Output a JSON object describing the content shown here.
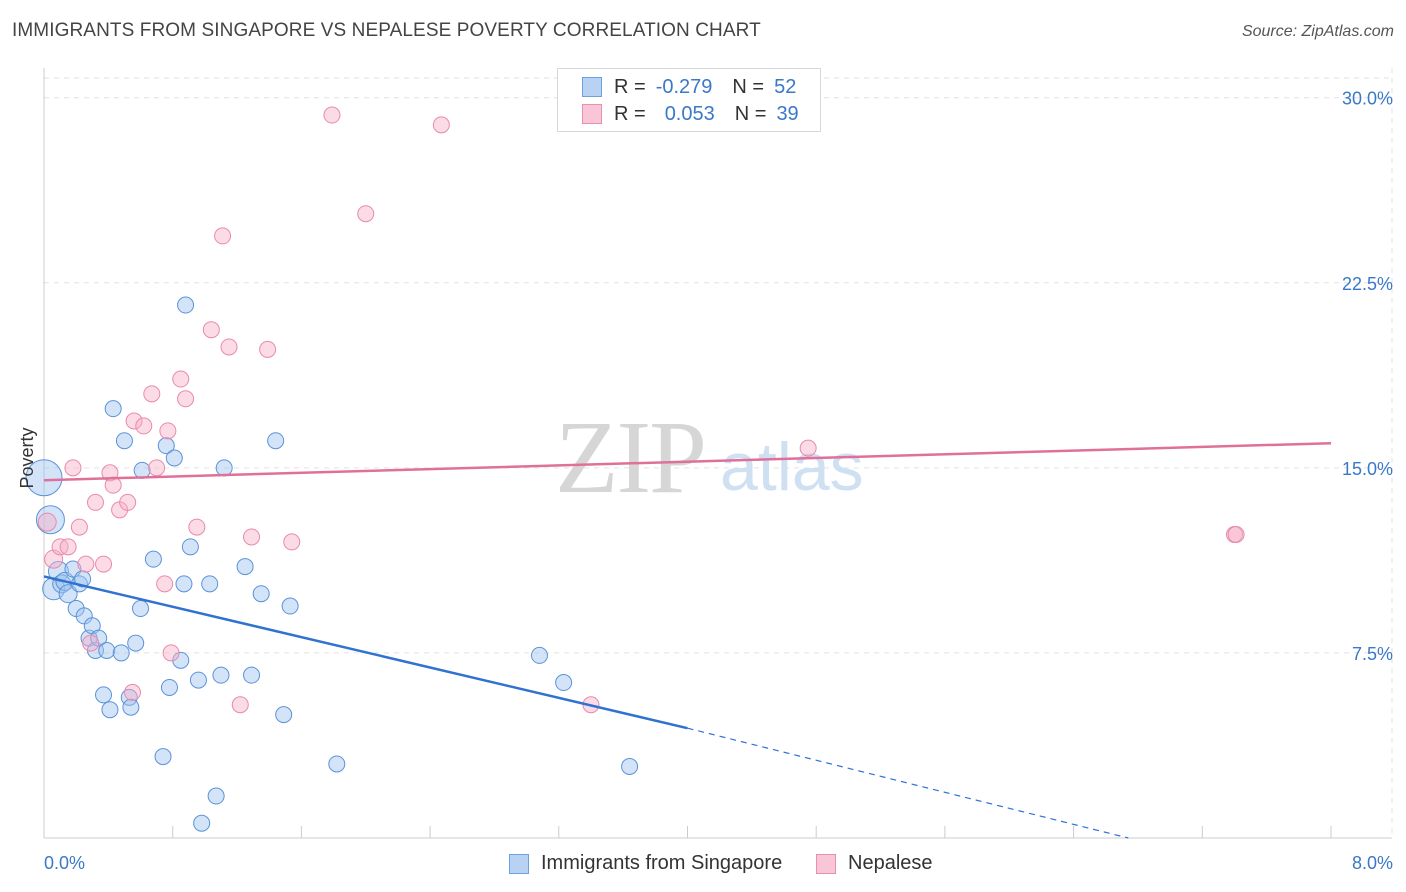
{
  "header": {
    "title": "IMMIGRANTS FROM SINGAPORE VS NEPALESE POVERTY CORRELATION CHART",
    "source": "Source: ZipAtlas.com"
  },
  "watermark": {
    "zip": "ZIP",
    "atlas": "atlas"
  },
  "legend": {
    "rows": [
      {
        "r_label": "R =",
        "r_value": "-0.279",
        "n_label": "N =",
        "n_value": "52",
        "fill": "#b8d2f4",
        "stroke": "#6f9fdc"
      },
      {
        "r_label": "R =",
        "r_value": "0.053",
        "n_label": "N =",
        "n_value": "39",
        "fill": "#f8c6d6",
        "stroke": "#e890ad"
      }
    ]
  },
  "bottom_legend": [
    {
      "label": "Immigrants from Singapore",
      "fill": "#b8d2f4",
      "stroke": "#6f9fdc"
    },
    {
      "label": "Nepalese",
      "fill": "#f8c6d6",
      "stroke": "#e890ad"
    }
  ],
  "colors": {
    "blue_fill": "rgba(160,196,240,0.45)",
    "blue_stroke": "#5b93d8",
    "blue_line": "#2f72d0",
    "pink_fill": "rgba(246,176,200,0.45)",
    "pink_stroke": "#e98aab",
    "pink_line": "#e0709a",
    "axis_text": "#3a78c8",
    "grid": "#e2e2e2"
  },
  "chart_data": {
    "type": "scatter",
    "title": "IMMIGRANTS FROM SINGAPORE VS NEPALESE POVERTY CORRELATION CHART",
    "xlabel": "",
    "ylabel": "Poverty",
    "xlim": [
      0,
      8
    ],
    "ylim": [
      0,
      30.8
    ],
    "x_tick_labels": [
      "0.0%",
      "8.0%"
    ],
    "y_ticks": [
      {
        "value": 7.5,
        "label": "7.5%"
      },
      {
        "value": 15.0,
        "label": "15.0%"
      },
      {
        "value": 22.5,
        "label": "22.5%"
      },
      {
        "value": 30.0,
        "label": "30.0%"
      }
    ],
    "series": [
      {
        "name": "Immigrants from Singapore",
        "color": "blue",
        "points": [
          {
            "x": 0.0,
            "y": 14.6,
            "r": 18
          },
          {
            "x": 0.04,
            "y": 12.9,
            "r": 14
          },
          {
            "x": 0.06,
            "y": 10.1,
            "r": 11
          },
          {
            "x": 0.09,
            "y": 10.8,
            "r": 10
          },
          {
            "x": 0.11,
            "y": 10.3,
            "r": 9
          },
          {
            "x": 0.13,
            "y": 10.4,
            "r": 9
          },
          {
            "x": 0.15,
            "y": 9.9,
            "r": 9
          },
          {
            "x": 0.18,
            "y": 10.9,
            "r": 8
          },
          {
            "x": 0.2,
            "y": 9.3,
            "r": 8
          },
          {
            "x": 0.22,
            "y": 10.3,
            "r": 8
          },
          {
            "x": 0.25,
            "y": 9.0,
            "r": 8
          },
          {
            "x": 0.28,
            "y": 8.1,
            "r": 8
          },
          {
            "x": 0.3,
            "y": 8.6,
            "r": 8
          },
          {
            "x": 0.32,
            "y": 7.6,
            "r": 8
          },
          {
            "x": 0.34,
            "y": 8.1,
            "r": 8
          },
          {
            "x": 0.37,
            "y": 5.8,
            "r": 8
          },
          {
            "x": 0.39,
            "y": 7.6,
            "r": 8
          },
          {
            "x": 0.41,
            "y": 5.2,
            "r": 8
          },
          {
            "x": 0.43,
            "y": 17.4,
            "r": 8
          },
          {
            "x": 0.48,
            "y": 7.5,
            "r": 8
          },
          {
            "x": 0.5,
            "y": 16.1,
            "r": 8
          },
          {
            "x": 0.53,
            "y": 5.7,
            "r": 8
          },
          {
            "x": 0.54,
            "y": 5.3,
            "r": 8
          },
          {
            "x": 0.57,
            "y": 7.9,
            "r": 8
          },
          {
            "x": 0.6,
            "y": 9.3,
            "r": 8
          },
          {
            "x": 0.61,
            "y": 14.9,
            "r": 8
          },
          {
            "x": 0.68,
            "y": 11.3,
            "r": 8
          },
          {
            "x": 0.74,
            "y": 3.3,
            "r": 8
          },
          {
            "x": 0.76,
            "y": 15.9,
            "r": 8
          },
          {
            "x": 0.78,
            "y": 6.1,
            "r": 8
          },
          {
            "x": 0.81,
            "y": 15.4,
            "r": 8
          },
          {
            "x": 0.85,
            "y": 7.2,
            "r": 8
          },
          {
            "x": 0.87,
            "y": 10.3,
            "r": 8
          },
          {
            "x": 0.88,
            "y": 21.6,
            "r": 8
          },
          {
            "x": 0.91,
            "y": 11.8,
            "r": 8
          },
          {
            "x": 0.96,
            "y": 6.4,
            "r": 8
          },
          {
            "x": 0.98,
            "y": 0.6,
            "r": 8
          },
          {
            "x": 1.03,
            "y": 10.3,
            "r": 8
          },
          {
            "x": 1.07,
            "y": 1.7,
            "r": 8
          },
          {
            "x": 1.1,
            "y": 6.6,
            "r": 8
          },
          {
            "x": 1.12,
            "y": 15.0,
            "r": 8
          },
          {
            "x": 1.25,
            "y": 11.0,
            "r": 8
          },
          {
            "x": 1.29,
            "y": 6.6,
            "r": 8
          },
          {
            "x": 1.35,
            "y": 9.9,
            "r": 8
          },
          {
            "x": 1.44,
            "y": 16.1,
            "r": 8
          },
          {
            "x": 1.49,
            "y": 5.0,
            "r": 8
          },
          {
            "x": 1.53,
            "y": 9.4,
            "r": 8
          },
          {
            "x": 1.82,
            "y": 3.0,
            "r": 8
          },
          {
            "x": 3.08,
            "y": 7.4,
            "r": 8
          },
          {
            "x": 3.23,
            "y": 6.3,
            "r": 8
          },
          {
            "x": 3.64,
            "y": 2.9,
            "r": 8
          },
          {
            "x": 0.24,
            "y": 10.5,
            "r": 8
          }
        ]
      },
      {
        "name": "Nepalese",
        "color": "pink",
        "points": [
          {
            "x": 0.02,
            "y": 12.8,
            "r": 9
          },
          {
            "x": 0.06,
            "y": 11.3,
            "r": 9
          },
          {
            "x": 0.1,
            "y": 11.8,
            "r": 8
          },
          {
            "x": 0.15,
            "y": 11.8,
            "r": 8
          },
          {
            "x": 0.18,
            "y": 15.0,
            "r": 8
          },
          {
            "x": 0.22,
            "y": 12.6,
            "r": 8
          },
          {
            "x": 0.26,
            "y": 11.1,
            "r": 8
          },
          {
            "x": 0.29,
            "y": 7.9,
            "r": 8
          },
          {
            "x": 0.32,
            "y": 13.6,
            "r": 8
          },
          {
            "x": 0.37,
            "y": 11.1,
            "r": 8
          },
          {
            "x": 0.41,
            "y": 14.8,
            "r": 8
          },
          {
            "x": 0.43,
            "y": 14.3,
            "r": 8
          },
          {
            "x": 0.47,
            "y": 13.3,
            "r": 8
          },
          {
            "x": 0.52,
            "y": 13.6,
            "r": 8
          },
          {
            "x": 0.55,
            "y": 5.9,
            "r": 8
          },
          {
            "x": 0.56,
            "y": 16.9,
            "r": 8
          },
          {
            "x": 0.62,
            "y": 16.7,
            "r": 8
          },
          {
            "x": 0.67,
            "y": 18.0,
            "r": 8
          },
          {
            "x": 0.7,
            "y": 15.0,
            "r": 8
          },
          {
            "x": 0.75,
            "y": 10.3,
            "r": 8
          },
          {
            "x": 0.77,
            "y": 16.5,
            "r": 8
          },
          {
            "x": 0.79,
            "y": 7.5,
            "r": 8
          },
          {
            "x": 0.85,
            "y": 18.6,
            "r": 8
          },
          {
            "x": 0.88,
            "y": 17.8,
            "r": 8
          },
          {
            "x": 0.95,
            "y": 12.6,
            "r": 8
          },
          {
            "x": 1.04,
            "y": 20.6,
            "r": 8
          },
          {
            "x": 1.11,
            "y": 24.4,
            "r": 8
          },
          {
            "x": 1.15,
            "y": 19.9,
            "r": 8
          },
          {
            "x": 1.22,
            "y": 5.4,
            "r": 8
          },
          {
            "x": 1.29,
            "y": 12.2,
            "r": 8
          },
          {
            "x": 1.39,
            "y": 19.8,
            "r": 8
          },
          {
            "x": 1.54,
            "y": 12.0,
            "r": 8
          },
          {
            "x": 1.79,
            "y": 29.3,
            "r": 8
          },
          {
            "x": 2.0,
            "y": 25.3,
            "r": 8
          },
          {
            "x": 2.47,
            "y": 28.9,
            "r": 8
          },
          {
            "x": 3.4,
            "y": 5.4,
            "r": 8
          },
          {
            "x": 4.75,
            "y": 15.8,
            "r": 8
          },
          {
            "x": 7.4,
            "y": 12.3,
            "r": 8
          },
          {
            "x": 7.41,
            "y": 12.3,
            "r": 8
          }
        ]
      }
    ],
    "trend_lines": [
      {
        "series": "Immigrants from Singapore",
        "x1": 0.0,
        "y1": 10.6,
        "x2": 4.0,
        "y2": 4.45,
        "dash_to_x": 6.74,
        "dash_to_y": 0.0
      },
      {
        "series": "Nepalese",
        "x1": 0.0,
        "y1": 14.5,
        "x2": 8.0,
        "y2": 16.0
      }
    ]
  }
}
